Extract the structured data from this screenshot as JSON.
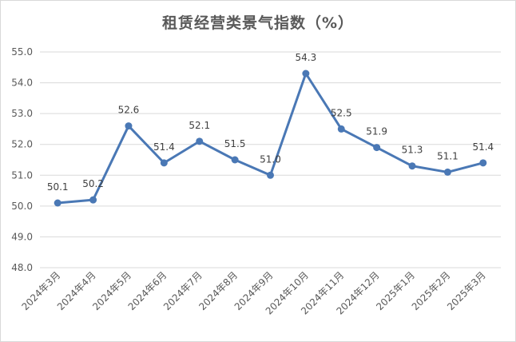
{
  "chart_data": {
    "type": "line",
    "title": "租赁经营类景气指数（%）",
    "categories": [
      "2024年3月",
      "2024年4月",
      "2024年5月",
      "2024年6月",
      "2024年7月",
      "2024年8月",
      "2024年9月",
      "2024年10月",
      "2024年11月",
      "2024年12月",
      "2025年1月",
      "2025年2月",
      "2025年3月"
    ],
    "series": [
      {
        "values": [
          50.1,
          50.2,
          52.6,
          51.4,
          52.1,
          51.5,
          51.0,
          54.3,
          52.5,
          51.9,
          51.3,
          51.1,
          51.4
        ]
      }
    ],
    "data_labels": [
      "50.1",
      "50.2",
      "52.6",
      "51.4",
      "52.1",
      "51.5",
      "51.0",
      "54.3",
      "52.5",
      "51.9",
      "51.3",
      "51.1",
      "51.4"
    ],
    "ylim": [
      48.0,
      55.0
    ],
    "yticks": [
      "48.0",
      "49.0",
      "50.0",
      "51.0",
      "52.0",
      "53.0",
      "54.0",
      "55.0"
    ],
    "grid": true,
    "legend": "none",
    "line_color": "#4a78b5",
    "grid_color": "#d9d9d9"
  }
}
